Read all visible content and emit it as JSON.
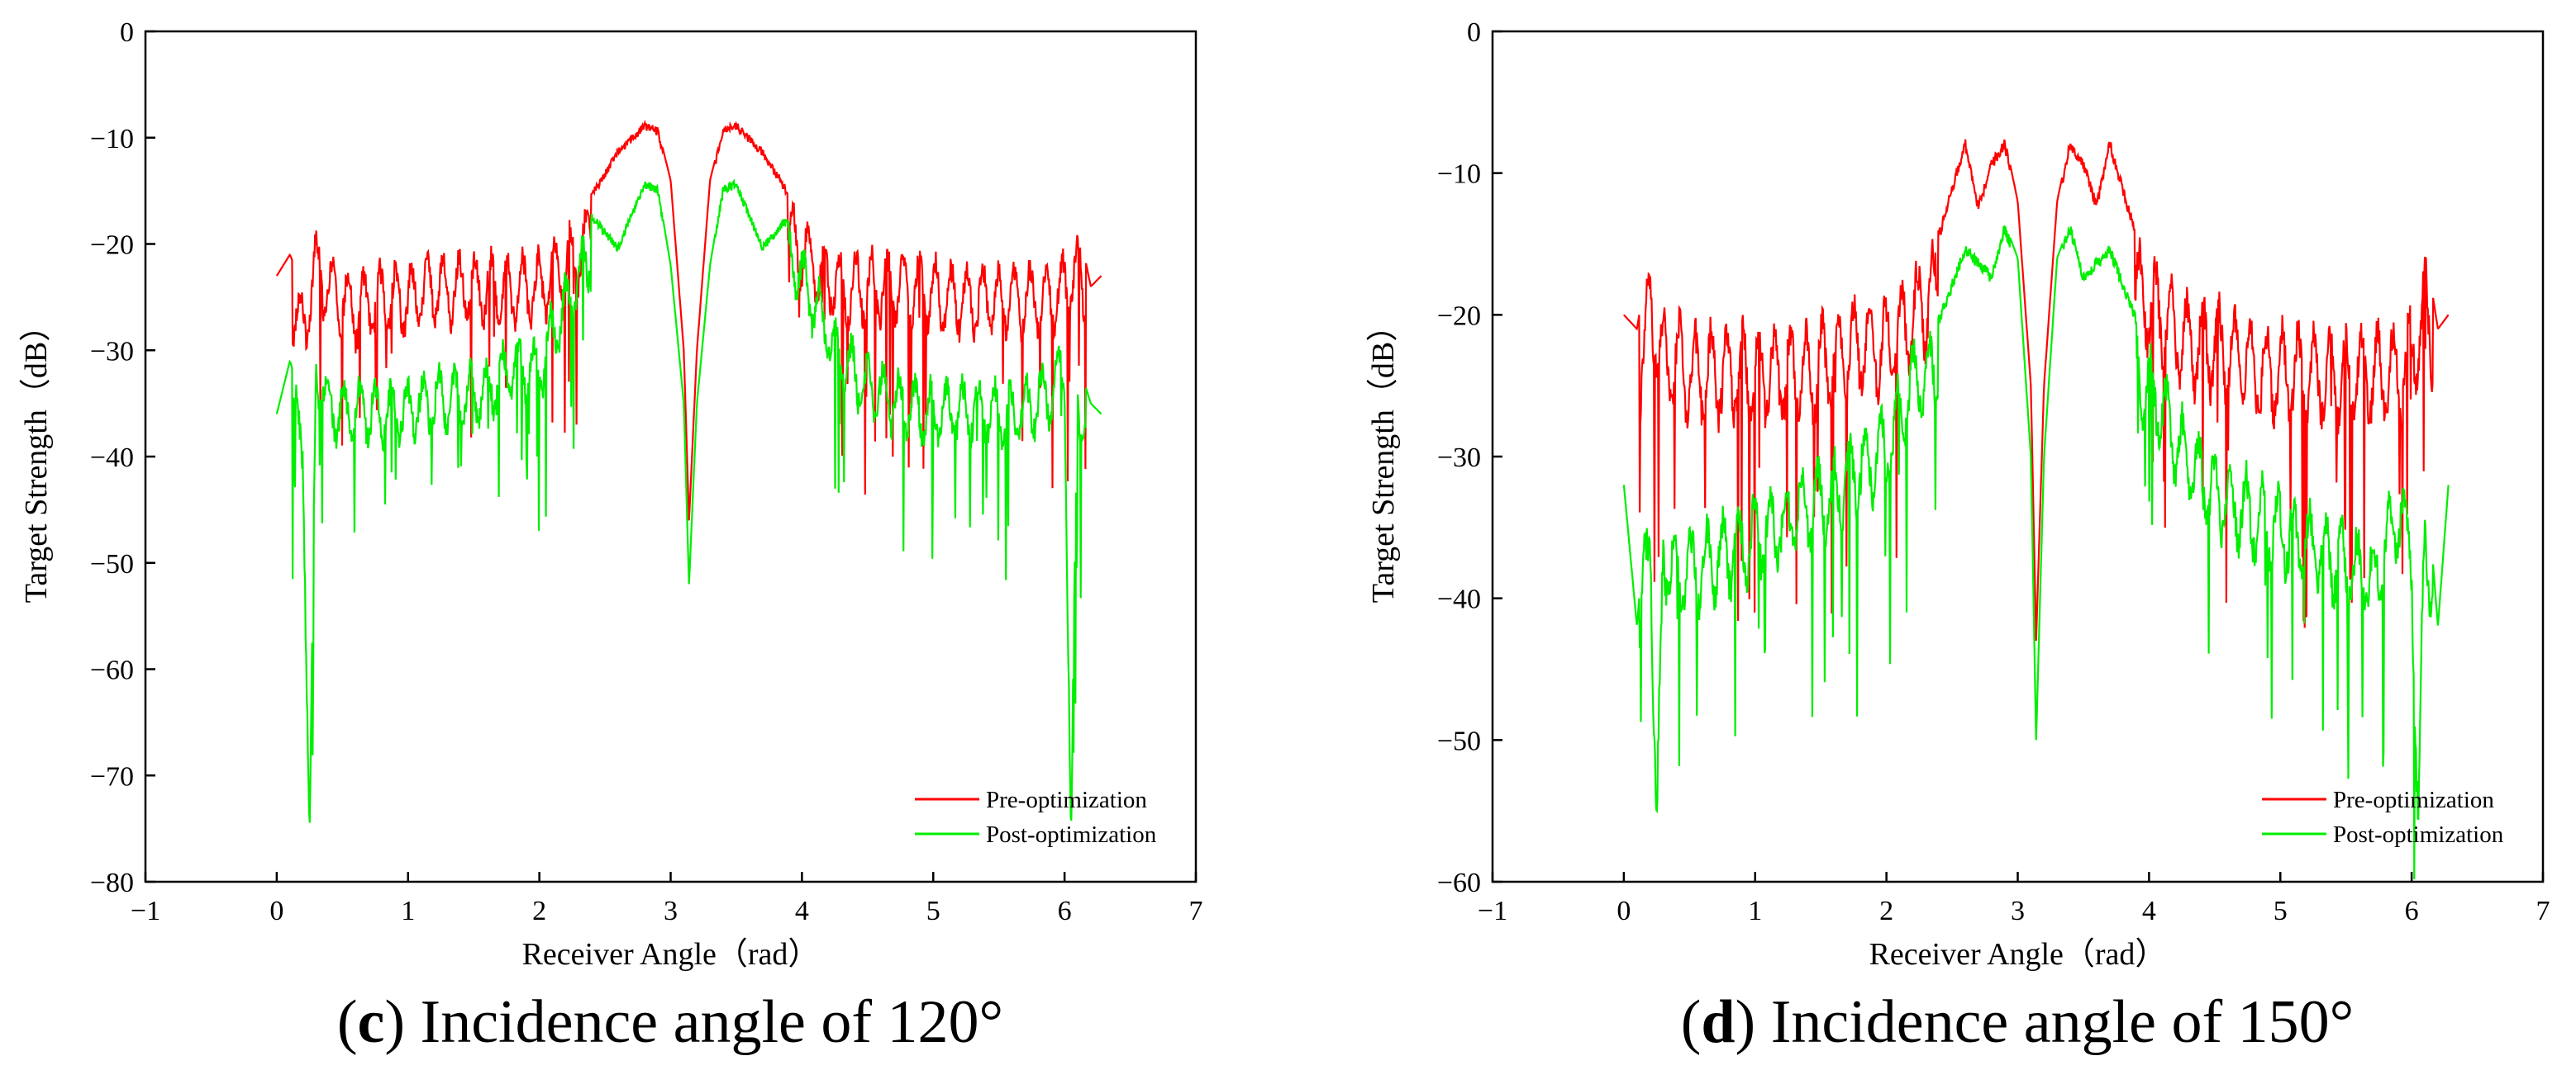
{
  "chart_data": [
    {
      "type": "line",
      "panel": "c",
      "caption_letter": "c",
      "caption_text": " Incidence angle of 120°",
      "caption_open": "(",
      "caption_close": ")",
      "xlabel": "Receiver Angle（rad）",
      "ylabel": "Target Strength（dB）",
      "xlim": [
        -1,
        7
      ],
      "ylim": [
        -80,
        0
      ],
      "xticks": [
        -1,
        0,
        1,
        2,
        3,
        4,
        5,
        6,
        7
      ],
      "yticks": [
        0,
        -10,
        -20,
        -30,
        -40,
        -50,
        -60,
        -70,
        -80
      ],
      "xtick_labels": [
        "−1",
        "0",
        "1",
        "2",
        "3",
        "4",
        "5",
        "6",
        "7"
      ],
      "ytick_labels": [
        "0",
        "−10",
        "−20",
        "−30",
        "−40",
        "−50",
        "−60",
        "−70",
        "−80"
      ],
      "legend_position": "bottom-right",
      "series": [
        {
          "name": "Pre-optimization",
          "color": "#ff0000",
          "x": [
            0,
            0.1,
            0.2,
            0.3,
            0.4,
            0.5,
            0.6,
            0.8,
            1.0,
            1.2,
            1.4,
            1.6,
            1.8,
            2.0,
            2.2,
            2.4,
            2.6,
            2.8,
            2.9,
            3.0,
            3.1,
            3.14,
            3.2,
            3.3,
            3.4,
            3.5,
            3.7,
            3.9,
            4.1,
            4.3,
            4.5,
            4.7,
            4.9,
            5.1,
            5.3,
            5.5,
            5.7,
            5.9,
            6.0,
            6.1,
            6.2,
            6.28
          ],
          "values": [
            -23,
            -21,
            -24,
            -18,
            -20,
            -21,
            -22,
            -21,
            -21,
            -20,
            -20,
            -20,
            -20,
            -20,
            -18,
            -15,
            -11,
            -8.5,
            -9,
            -14,
            -30,
            -46,
            -30,
            -14,
            -9,
            -8.5,
            -11,
            -15,
            -18,
            -20,
            -20,
            -20,
            -20,
            -21,
            -21,
            -21,
            -21,
            -21,
            -20,
            -18,
            -24,
            -23
          ]
        },
        {
          "name": "Post-optimization",
          "color": "#00ee00",
          "x": [
            0,
            0.1,
            0.2,
            0.25,
            0.3,
            0.4,
            0.6,
            0.8,
            1.0,
            1.2,
            1.4,
            1.6,
            1.8,
            2.0,
            2.2,
            2.4,
            2.6,
            2.8,
            2.9,
            3.0,
            3.1,
            3.14,
            3.2,
            3.3,
            3.4,
            3.5,
            3.7,
            3.9,
            4.1,
            4.3,
            4.5,
            4.7,
            4.9,
            5.1,
            5.3,
            5.5,
            5.7,
            5.9,
            6.0,
            6.05,
            6.1,
            6.2,
            6.28
          ],
          "values": [
            -36,
            -31,
            -35,
            -73,
            -28,
            -32,
            -32,
            -32,
            -32,
            -31,
            -31,
            -30,
            -28,
            -28,
            -22,
            -17,
            -20,
            -14,
            -14.5,
            -22,
            -35,
            -52,
            -35,
            -22,
            -14.5,
            -14,
            -20,
            -17,
            -22,
            -27,
            -30,
            -31,
            -32,
            -32,
            -32,
            -32,
            -32,
            -30,
            -28,
            -73,
            -31,
            -35,
            -36
          ]
        }
      ]
    },
    {
      "type": "line",
      "panel": "d",
      "caption_letter": "d",
      "caption_text": " Incidence angle of 150°",
      "caption_open": "(",
      "caption_close": ")",
      "xlabel": "Receiver Angle（rad）",
      "ylabel": "Target Strength（dB）",
      "xlim": [
        -1,
        7
      ],
      "ylim": [
        -60,
        0
      ],
      "xticks": [
        -1,
        0,
        1,
        2,
        3,
        4,
        5,
        6,
        7
      ],
      "yticks": [
        0,
        -10,
        -20,
        -30,
        -40,
        -50,
        -60
      ],
      "xtick_labels": [
        "−1",
        "0",
        "1",
        "2",
        "3",
        "4",
        "5",
        "6",
        "7"
      ],
      "ytick_labels": [
        "0",
        "−10",
        "−20",
        "−30",
        "−40",
        "−50",
        "−60"
      ],
      "legend_position": "bottom-right",
      "series": [
        {
          "name": "Pre-optimization",
          "color": "#ff0000",
          "x": [
            0,
            0.1,
            0.2,
            0.3,
            0.4,
            0.5,
            0.6,
            0.8,
            1.0,
            1.2,
            1.4,
            1.6,
            1.8,
            2.0,
            2.2,
            2.4,
            2.6,
            2.7,
            2.8,
            2.9,
            3.0,
            3.1,
            3.14,
            3.2,
            3.3,
            3.4,
            3.5,
            3.6,
            3.7,
            3.9,
            4.1,
            4.3,
            4.5,
            4.7,
            4.9,
            5.1,
            5.3,
            5.5,
            5.7,
            5.9,
            6.0,
            6.1,
            6.2,
            6.28
          ],
          "values": [
            -20,
            -21,
            -15,
            -19,
            -19,
            -20,
            -20,
            -20,
            -20,
            -20,
            -20,
            -19,
            -18,
            -18,
            -16,
            -14,
            -7.5,
            -12,
            -9,
            -7.5,
            -12,
            -25,
            -43,
            -25,
            -12,
            -7.5,
            -9,
            -12,
            -7.5,
            -14,
            -16,
            -18,
            -18,
            -19,
            -20,
            -20,
            -20,
            -20,
            -20,
            -20,
            -19,
            -15,
            -21,
            -20
          ]
        },
        {
          "name": "Post-optimization",
          "color": "#00ee00",
          "x": [
            0,
            0.1,
            0.2,
            0.25,
            0.3,
            0.4,
            0.6,
            0.8,
            1.0,
            1.2,
            1.4,
            1.6,
            1.8,
            2.0,
            2.2,
            2.4,
            2.6,
            2.8,
            2.9,
            3.0,
            3.1,
            3.14,
            3.2,
            3.3,
            3.4,
            3.5,
            3.7,
            3.9,
            4.1,
            4.3,
            4.5,
            4.7,
            4.9,
            5.1,
            5.3,
            5.5,
            5.7,
            5.9,
            6.0,
            6.05,
            6.1,
            6.2,
            6.28
          ],
          "values": [
            -32,
            -42,
            -30,
            -54,
            -33,
            -35,
            -34,
            -33,
            -32,
            -31,
            -30,
            -29,
            -27,
            -26,
            -21,
            -20,
            -15,
            -17,
            -13.5,
            -16,
            -30,
            -50,
            -30,
            -16,
            -13.5,
            -17,
            -15,
            -20,
            -23,
            -27,
            -29,
            -30,
            -31,
            -32,
            -33,
            -34,
            -35,
            -30,
            -33,
            -54,
            -30,
            -42,
            -32
          ]
        }
      ]
    }
  ]
}
